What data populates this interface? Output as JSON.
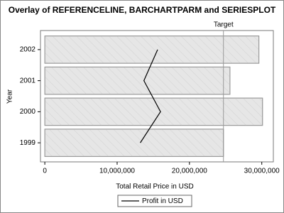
{
  "chart_data": {
    "type": "bar",
    "orientation": "horizontal",
    "title": "Overlay of REFERENCELINE, BARCHARTPARM and SERIESPLOT",
    "x_label": "Total Retail Price in USD",
    "y_label": "Year",
    "categories": [
      "1999",
      "2000",
      "2001",
      "2002"
    ],
    "values": [
      24700000,
      30100000,
      25600000,
      29600000
    ],
    "color": "#e6e6e6",
    "series": [
      {
        "name": "Profit in USD",
        "type": "line",
        "color": "#000000",
        "values": [
          13200000,
          16000000,
          13700000,
          15600000
        ]
      }
    ],
    "reference_line": {
      "value": 24700000,
      "label": "Target",
      "color": "#999999"
    },
    "xlim": [
      -600000,
      31600000
    ],
    "xticks": [
      0,
      {
        "value": 10000000,
        "label": "10,000,000"
      },
      {
        "value": 20000000,
        "label": "20,000,000"
      },
      {
        "value": 30000000,
        "label": "30,000,000"
      }
    ],
    "grid": false
  }
}
